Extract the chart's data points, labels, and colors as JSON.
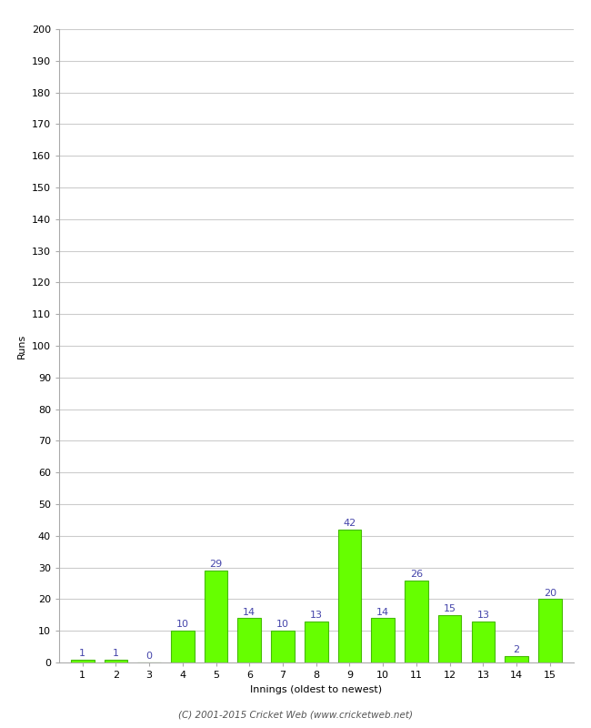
{
  "xlabel": "Innings (oldest to newest)",
  "ylabel": "Runs",
  "categories": [
    1,
    2,
    3,
    4,
    5,
    6,
    7,
    8,
    9,
    10,
    11,
    12,
    13,
    14,
    15
  ],
  "values": [
    1,
    1,
    0,
    10,
    29,
    14,
    10,
    13,
    42,
    14,
    26,
    15,
    13,
    2,
    20
  ],
  "bar_color": "#66ff00",
  "bar_edge_color": "#44bb00",
  "ylim": [
    0,
    200
  ],
  "yticks": [
    0,
    10,
    20,
    30,
    40,
    50,
    60,
    70,
    80,
    90,
    100,
    110,
    120,
    130,
    140,
    150,
    160,
    170,
    180,
    190,
    200
  ],
  "label_color": "#4444aa",
  "background_color": "#ffffff",
  "grid_color": "#cccccc",
  "footer_text": "(C) 2001-2015 Cricket Web (www.cricketweb.net)",
  "label_fontsize": 8,
  "axis_tick_fontsize": 8,
  "axis_label_fontsize": 8
}
